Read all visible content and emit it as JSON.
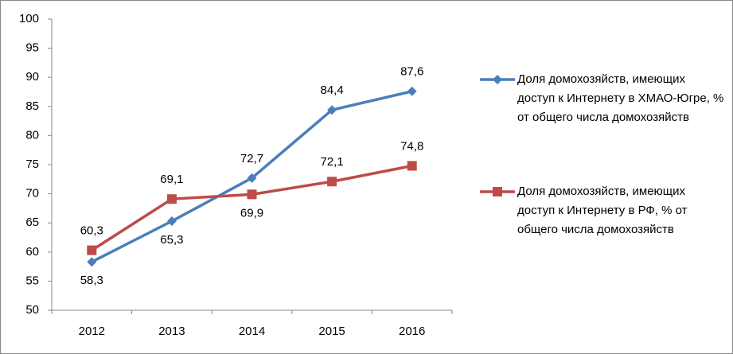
{
  "chart_data": {
    "type": "line",
    "categories": [
      "2012",
      "2013",
      "2014",
      "2015",
      "2016"
    ],
    "series": [
      {
        "name": "Доля домохозяйств, имеющих доступ к Интернету в ХМАО-Югре, % от общего числа домохозяйств",
        "color": "#4a7ebb",
        "marker": "diamond",
        "values": [
          58.3,
          65.3,
          72.7,
          84.4,
          87.6
        ],
        "value_labels": [
          "58,3",
          "65,3",
          "72,7",
          "84,4",
          "87,6"
        ]
      },
      {
        "name": "Доля домохозяйств, имеющих доступ к Интернету в РФ, % от общего числа домохозяйств",
        "color": "#be4b48",
        "marker": "square",
        "values": [
          60.3,
          69.1,
          69.9,
          72.1,
          74.8
        ],
        "value_labels": [
          "60,3",
          "69,1",
          "69,9",
          "72,1",
          "74,8"
        ]
      }
    ],
    "ylim": [
      50,
      100
    ],
    "yticks": [
      50,
      55,
      60,
      65,
      70,
      75,
      80,
      85,
      90,
      95,
      100
    ],
    "grid": false,
    "legend": "right"
  }
}
